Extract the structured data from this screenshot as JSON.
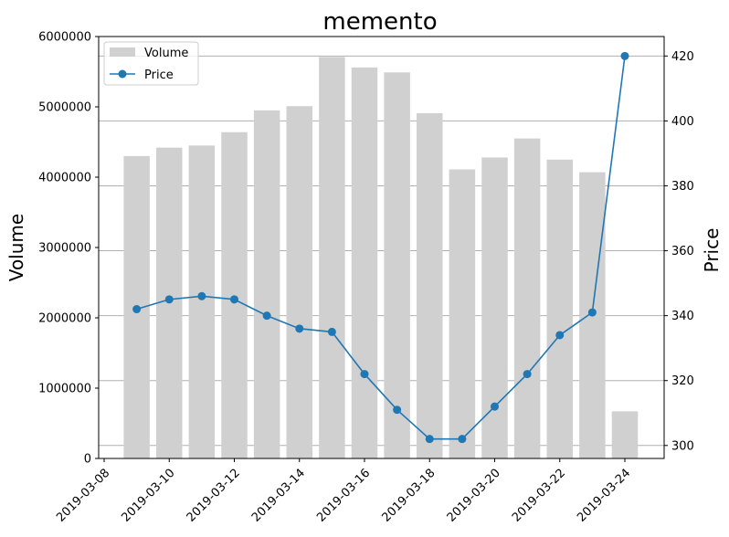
{
  "chart_data": {
    "type": "bar+line",
    "title": "memento",
    "ylabel_left": "Volume",
    "ylabel_right": "Price",
    "xlabel": "",
    "dates": [
      "2019-03-09",
      "2019-03-10",
      "2019-03-11",
      "2019-03-12",
      "2019-03-13",
      "2019-03-14",
      "2019-03-15",
      "2019-03-16",
      "2019-03-17",
      "2019-03-18",
      "2019-03-19",
      "2019-03-20",
      "2019-03-21",
      "2019-03-22",
      "2019-03-23",
      "2019-03-24"
    ],
    "xlim": [
      "2019-03-08",
      "2019-03-24"
    ],
    "x_ticks": [
      "2019-03-08",
      "2019-03-10",
      "2019-03-12",
      "2019-03-14",
      "2019-03-16",
      "2019-03-18",
      "2019-03-20",
      "2019-03-22",
      "2019-03-24"
    ],
    "series": [
      {
        "name": "Volume",
        "type": "bar",
        "axis": "left",
        "color": "#d0d0d0",
        "values": [
          4300000,
          4420000,
          4450000,
          4640000,
          4950000,
          5010000,
          5710000,
          5560000,
          5490000,
          4910000,
          4110000,
          4280000,
          4550000,
          4250000,
          4070000,
          670000
        ]
      },
      {
        "name": "Price",
        "type": "line",
        "axis": "right",
        "color": "#1f77b4",
        "values": [
          342,
          345,
          346,
          345,
          340,
          336,
          335,
          322,
          311,
          302,
          302,
          312,
          322,
          334,
          341,
          420
        ]
      }
    ],
    "ylim_left": [
      0,
      6000000
    ],
    "yticks_left": [
      "0",
      "1000000",
      "2000000",
      "3000000",
      "4000000",
      "5000000",
      "6000000"
    ],
    "ylim_right": [
      296,
      426
    ],
    "yticks_right": [
      "300",
      "320",
      "340",
      "360",
      "380",
      "400",
      "420"
    ],
    "grid": "horizontal on right axis ticks",
    "legend": {
      "placement": "top-left",
      "entries": [
        "Volume",
        "Price"
      ]
    }
  }
}
